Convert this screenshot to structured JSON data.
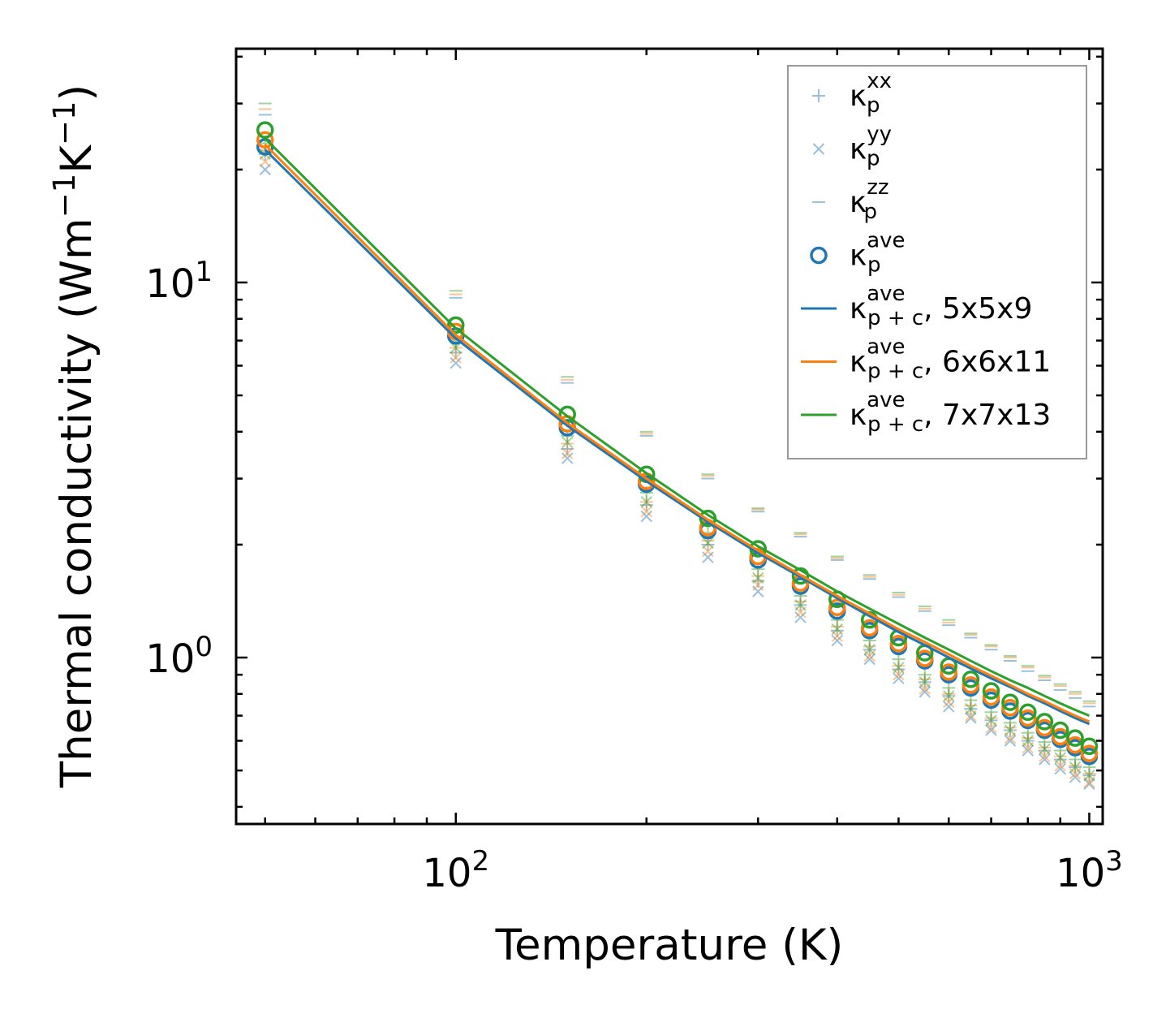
{
  "chart_data": {
    "type": "scatter",
    "xscale": "log",
    "yscale": "log",
    "xlabel": "Temperature (K)",
    "ylabel_main": "Thermal conductivity (Wm",
    "ylabel_exp1": "−1",
    "ylabel_mid": "K",
    "ylabel_exp2": "−1",
    "ylabel_end": ")",
    "xlim": [
      45,
      1050
    ],
    "ylim": [
      0.36,
      42
    ],
    "x_ticks": [
      {
        "value": 100,
        "base": "10",
        "exp": "2"
      },
      {
        "value": 1000,
        "base": "10",
        "exp": "3"
      }
    ],
    "y_ticks": [
      {
        "value": 1,
        "base": "10",
        "exp": "0"
      },
      {
        "value": 10,
        "base": "10",
        "exp": "1"
      }
    ],
    "temperatures": [
      50,
      100,
      150,
      200,
      250,
      300,
      350,
      400,
      450,
      500,
      550,
      600,
      650,
      700,
      750,
      800,
      850,
      900,
      950,
      1000
    ],
    "series": [
      {
        "name": "5x5x9",
        "color": "#1f77b4",
        "kxx": [
          22.0,
          6.5,
          3.6,
          2.55,
          2.0,
          1.6,
          1.38,
          1.18,
          1.05,
          0.93,
          0.86,
          0.79,
          0.73,
          0.68,
          0.64,
          0.6,
          0.565,
          0.535,
          0.51,
          0.485
        ],
        "kyy": [
          20.0,
          6.1,
          3.4,
          2.38,
          1.85,
          1.5,
          1.28,
          1.11,
          0.99,
          0.88,
          0.81,
          0.74,
          0.69,
          0.64,
          0.6,
          0.565,
          0.535,
          0.505,
          0.48,
          0.46
        ],
        "kzz": [
          28.0,
          9.1,
          5.4,
          3.9,
          3.0,
          2.45,
          2.1,
          1.82,
          1.62,
          1.45,
          1.33,
          1.22,
          1.13,
          1.05,
          0.98,
          0.92,
          0.87,
          0.82,
          0.78,
          0.74
        ],
        "kave": [
          23.0,
          7.2,
          4.1,
          2.9,
          2.18,
          1.82,
          1.55,
          1.33,
          1.18,
          1.07,
          0.98,
          0.9,
          0.83,
          0.77,
          0.72,
          0.68,
          0.64,
          0.605,
          0.575,
          0.545
        ],
        "kpc": [
          22.6,
          7.1,
          4.15,
          2.95,
          2.3,
          1.9,
          1.64,
          1.44,
          1.29,
          1.17,
          1.08,
          1.0,
          0.935,
          0.88,
          0.835,
          0.79,
          0.755,
          0.72,
          0.69,
          0.665
        ]
      },
      {
        "name": "6x6x11",
        "color": "#ff7f0e",
        "kxx": [
          22.5,
          6.7,
          3.72,
          2.6,
          2.05,
          1.65,
          1.41,
          1.21,
          1.07,
          0.95,
          0.875,
          0.8,
          0.745,
          0.69,
          0.65,
          0.61,
          0.575,
          0.545,
          0.515,
          0.49
        ],
        "kyy": [
          21.0,
          6.3,
          3.5,
          2.45,
          1.92,
          1.56,
          1.32,
          1.14,
          1.01,
          0.9,
          0.825,
          0.76,
          0.7,
          0.65,
          0.61,
          0.575,
          0.545,
          0.515,
          0.49,
          0.465
        ],
        "kzz": [
          29.0,
          9.3,
          5.5,
          3.95,
          3.05,
          2.48,
          2.13,
          1.84,
          1.64,
          1.47,
          1.35,
          1.24,
          1.15,
          1.07,
          1.0,
          0.94,
          0.885,
          0.84,
          0.8,
          0.755
        ],
        "kave": [
          24.0,
          7.4,
          4.2,
          2.95,
          2.22,
          1.86,
          1.58,
          1.36,
          1.2,
          1.09,
          0.995,
          0.915,
          0.845,
          0.785,
          0.735,
          0.69,
          0.65,
          0.615,
          0.585,
          0.555
        ],
        "kpc": [
          23.3,
          7.25,
          4.22,
          3.0,
          2.33,
          1.93,
          1.66,
          1.46,
          1.31,
          1.19,
          1.1,
          1.02,
          0.95,
          0.895,
          0.845,
          0.8,
          0.765,
          0.73,
          0.7,
          0.675
        ]
      },
      {
        "name": "7x7x13",
        "color": "#2ca02c",
        "kxx": [
          23.5,
          7.0,
          3.9,
          2.75,
          2.15,
          1.72,
          1.46,
          1.26,
          1.11,
          0.99,
          0.9,
          0.83,
          0.77,
          0.715,
          0.67,
          0.63,
          0.595,
          0.565,
          0.535,
          0.51
        ],
        "kyy": [
          22.0,
          6.7,
          3.75,
          2.6,
          2.02,
          1.63,
          1.38,
          1.19,
          1.05,
          0.94,
          0.86,
          0.79,
          0.73,
          0.68,
          0.64,
          0.6,
          0.57,
          0.54,
          0.51,
          0.485
        ],
        "kzz": [
          30.0,
          9.5,
          5.6,
          4.0,
          3.08,
          2.5,
          2.15,
          1.86,
          1.66,
          1.49,
          1.37,
          1.26,
          1.16,
          1.08,
          1.01,
          0.95,
          0.895,
          0.85,
          0.81,
          0.765
        ],
        "kave": [
          25.5,
          7.7,
          4.45,
          3.08,
          2.35,
          1.95,
          1.65,
          1.43,
          1.26,
          1.13,
          1.03,
          0.95,
          0.875,
          0.815,
          0.76,
          0.715,
          0.675,
          0.64,
          0.61,
          0.58
        ],
        "kpc": [
          24.2,
          7.55,
          4.4,
          3.1,
          2.4,
          1.98,
          1.71,
          1.5,
          1.35,
          1.23,
          1.13,
          1.05,
          0.98,
          0.92,
          0.87,
          0.83,
          0.79,
          0.755,
          0.725,
          0.7
        ]
      }
    ],
    "legend": {
      "position": "top-right",
      "entries": [
        {
          "marker": "plus",
          "base": "κ",
          "sup": "xx",
          "sub": "p",
          "suffix": ""
        },
        {
          "marker": "x",
          "base": "κ",
          "sup": "yy",
          "sub": "p",
          "suffix": ""
        },
        {
          "marker": "dash",
          "base": "κ",
          "sup": "zz",
          "sub": "p",
          "suffix": ""
        },
        {
          "marker": "circle",
          "base": "κ",
          "sup": "ave",
          "sub": "p",
          "suffix": ""
        },
        {
          "marker": "line",
          "series": 0,
          "base": "κ",
          "sup": "ave",
          "sub": "p + c",
          "suffix": ", 5x5x9"
        },
        {
          "marker": "line",
          "series": 1,
          "base": "κ",
          "sup": "ave",
          "sub": "p + c",
          "suffix": ", 6x6x11"
        },
        {
          "marker": "line",
          "series": 2,
          "base": "κ",
          "sup": "ave",
          "sub": "p + c",
          "suffix": ", 7x7x13"
        }
      ]
    }
  }
}
